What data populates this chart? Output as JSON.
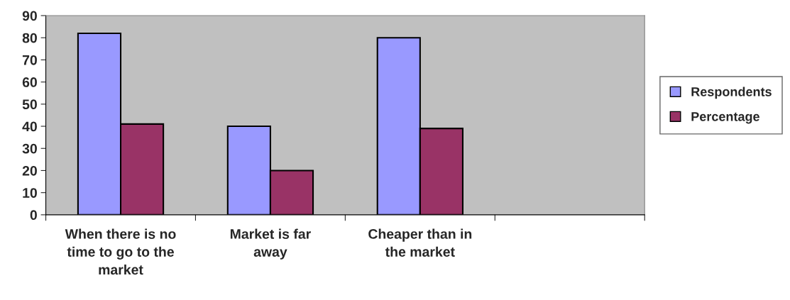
{
  "chart_data": {
    "type": "bar",
    "categories": [
      "When there is no time to go to the market",
      "Market is far away",
      "Cheaper than in the market",
      null
    ],
    "series": [
      {
        "name": "Respondents",
        "color": "#9999ff",
        "values": [
          82,
          40,
          80,
          null
        ]
      },
      {
        "name": "Percentage",
        "color": "#993366",
        "values": [
          41,
          20,
          39,
          null
        ]
      }
    ],
    "ylim": [
      0,
      90
    ],
    "yticks": [
      0,
      10,
      20,
      30,
      40,
      50,
      60,
      70,
      80,
      90
    ],
    "grid": false,
    "legend": "right"
  }
}
